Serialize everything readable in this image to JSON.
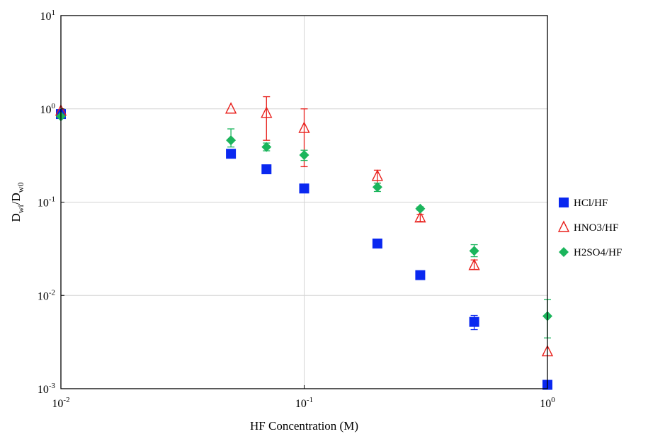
{
  "chart_data": {
    "type": "scatter",
    "xlabel": "HF Concentration (M)",
    "ylabel": {
      "base": "D",
      "sub1": "wi",
      "mid": "/D",
      "sub2": "w0"
    },
    "xscale": "log",
    "yscale": "log",
    "xlim": [
      0.01,
      1
    ],
    "ylim": [
      0.001,
      10
    ],
    "grid": true,
    "legend_position": "right",
    "x_ticks": [
      {
        "value": 0.01,
        "base": "10",
        "exp": "-2"
      },
      {
        "value": 0.1,
        "base": "10",
        "exp": "-1"
      },
      {
        "value": 1,
        "base": "10",
        "exp": "0"
      }
    ],
    "y_ticks": [
      {
        "value": 0.001,
        "base": "10",
        "exp": "-3"
      },
      {
        "value": 0.01,
        "base": "10",
        "exp": "-2"
      },
      {
        "value": 0.1,
        "base": "10",
        "exp": "-1"
      },
      {
        "value": 1,
        "base": "10",
        "exp": "0"
      },
      {
        "value": 10,
        "base": "10",
        "exp": "1"
      }
    ],
    "series": [
      {
        "name": "HCl/HF",
        "marker": "square",
        "color": "#0a28f0",
        "points": [
          {
            "x": 0.01,
            "y": 0.88,
            "yerr_low": 0.8,
            "yerr_high": 0.96
          },
          {
            "x": 0.05,
            "y": 0.33
          },
          {
            "x": 0.07,
            "y": 0.225
          },
          {
            "x": 0.1,
            "y": 0.14
          },
          {
            "x": 0.2,
            "y": 0.036
          },
          {
            "x": 0.3,
            "y": 0.0165
          },
          {
            "x": 0.5,
            "y": 0.0052,
            "yerr_low": 0.0043,
            "yerr_high": 0.0061
          },
          {
            "x": 1,
            "y": 0.0011
          }
        ]
      },
      {
        "name": "HNO3/HF",
        "marker": "triangle-open",
        "color": "#e8201c",
        "points": [
          {
            "x": 0.01,
            "y": 0.95
          },
          {
            "x": 0.05,
            "y": 1.0
          },
          {
            "x": 0.07,
            "y": 0.9,
            "yerr_low": 0.46,
            "yerr_high": 1.35
          },
          {
            "x": 0.1,
            "y": 0.62,
            "yerr_low": 0.24,
            "yerr_high": 1.0
          },
          {
            "x": 0.2,
            "y": 0.19,
            "yerr_low": 0.16,
            "yerr_high": 0.22
          },
          {
            "x": 0.3,
            "y": 0.068,
            "yerr_low": 0.062,
            "yerr_high": 0.074
          },
          {
            "x": 0.5,
            "y": 0.021,
            "yerr_low": 0.019,
            "yerr_high": 0.024
          },
          {
            "x": 1,
            "y": 0.0025
          }
        ]
      },
      {
        "name": "H2SO4/HF",
        "marker": "diamond",
        "color": "#1bb55c",
        "points": [
          {
            "x": 0.01,
            "y": 0.83
          },
          {
            "x": 0.05,
            "y": 0.46,
            "yerr_low": 0.39,
            "yerr_high": 0.61
          },
          {
            "x": 0.07,
            "y": 0.39,
            "yerr_low": 0.355,
            "yerr_high": 0.43
          },
          {
            "x": 0.1,
            "y": 0.32,
            "yerr_low": 0.28,
            "yerr_high": 0.36
          },
          {
            "x": 0.2,
            "y": 0.145,
            "yerr_low": 0.13,
            "yerr_high": 0.16
          },
          {
            "x": 0.3,
            "y": 0.085,
            "yerr_low": 0.082,
            "yerr_high": 0.089
          },
          {
            "x": 0.5,
            "y": 0.03,
            "yerr_low": 0.026,
            "yerr_high": 0.035
          },
          {
            "x": 1,
            "y": 0.006,
            "yerr_low": 0.0035,
            "yerr_high": 0.009
          }
        ]
      }
    ]
  }
}
